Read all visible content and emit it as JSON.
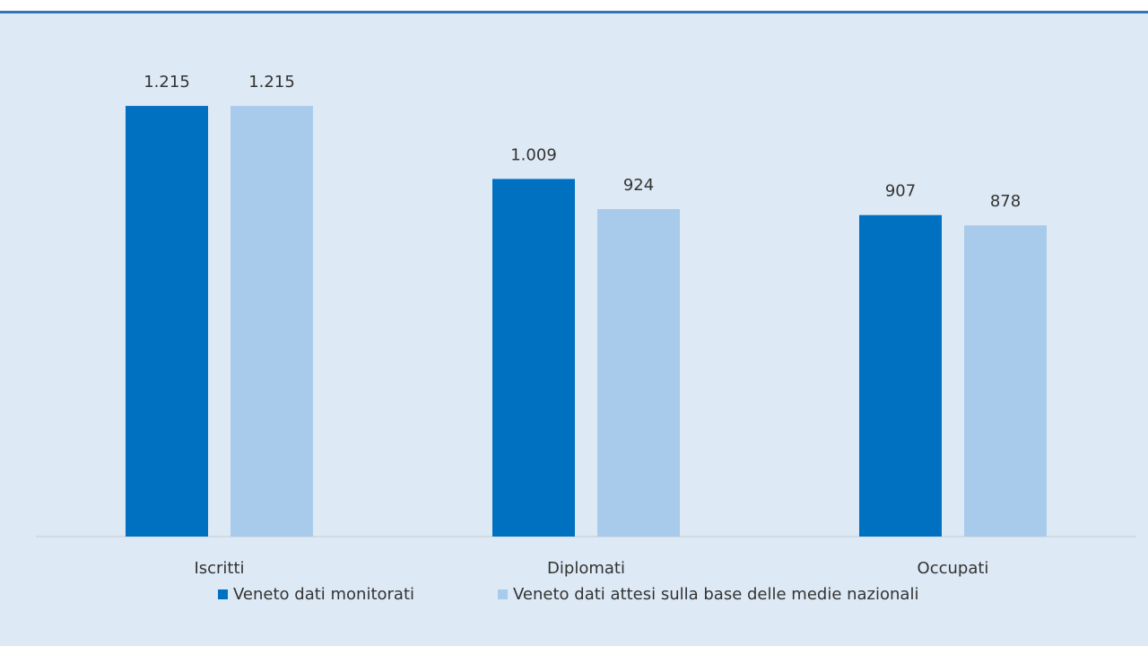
{
  "chart_data": {
    "type": "bar",
    "categories": [
      "Iscritti",
      "Diplomati",
      "Occupati"
    ],
    "series": [
      {
        "name": "Veneto dati monitorati",
        "color": "#0070c0",
        "values": [
          1215,
          1009,
          907
        ],
        "value_labels": [
          "1.215",
          "1.009",
          "907"
        ]
      },
      {
        "name": "Veneto dati attesi sulla base delle medie nazionali",
        "color": "#a9cbeb",
        "values": [
          1215,
          924,
          878
        ],
        "value_labels": [
          "1.215",
          "924",
          "878"
        ]
      }
    ],
    "ylim": [
      0,
      1400
    ],
    "grid": false,
    "legend": "bottom"
  }
}
